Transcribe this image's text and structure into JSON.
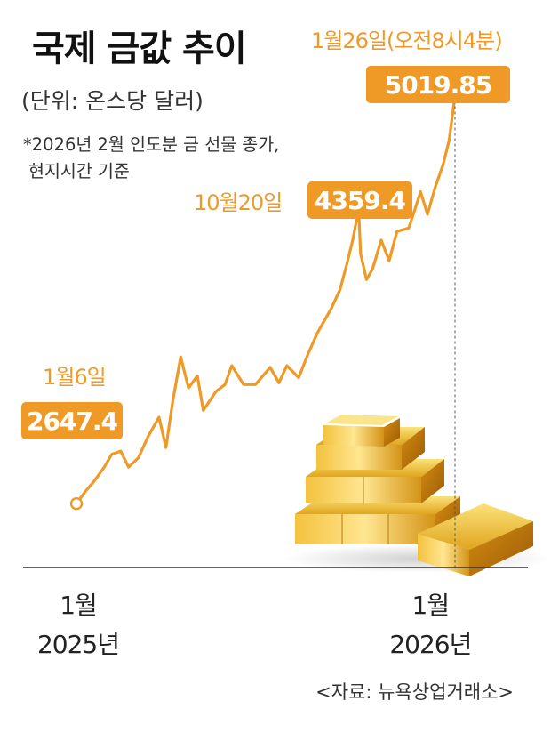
{
  "title": "국제 금값 추이",
  "unit": "(단위: 온스당 달러)",
  "note_lines": [
    "*2026년 2월 인도분 금 선물 종가,",
    "현지시간 기준"
  ],
  "source": "<자료: 뉴욕상업거래소>",
  "colors": {
    "accent": "#ef9a26",
    "line": "#ef9a26",
    "axis": "#333333",
    "text": "#222222"
  },
  "chart_data": {
    "type": "line",
    "title": "국제 금값 추이",
    "ylabel": "(단위: 온스당 달러)",
    "x_ticks": [
      {
        "date": "2025-01-01",
        "month": "1월",
        "year": "2025년"
      },
      {
        "date": "2026-01-01",
        "month": "1월",
        "year": "2026년"
      }
    ],
    "annotations": [
      {
        "date": "2025-01-06",
        "date_label": "1월6일",
        "value_label": "2647.4"
      },
      {
        "date": "2025-10-20",
        "date_label": "10월20일",
        "value_label": "4359.4"
      },
      {
        "date": "2026-01-26",
        "date_label": "1월26일(오전8시4분)",
        "value_label": "5019.85"
      }
    ],
    "series": [
      {
        "points": [
          [
            "2025-01-06",
            2647.4
          ],
          [
            "2025-01-15",
            2718
          ],
          [
            "2025-01-24",
            2778
          ],
          [
            "2025-02-03",
            2857
          ],
          [
            "2025-02-11",
            2935
          ],
          [
            "2025-02-20",
            2953
          ],
          [
            "2025-02-28",
            2860
          ],
          [
            "2025-03-10",
            2914
          ],
          [
            "2025-03-20",
            3040
          ],
          [
            "2025-03-31",
            3150
          ],
          [
            "2025-04-07",
            2973
          ],
          [
            "2025-04-14",
            3245
          ],
          [
            "2025-04-22",
            3500
          ],
          [
            "2025-04-30",
            3320
          ],
          [
            "2025-05-09",
            3390
          ],
          [
            "2025-05-15",
            3190
          ],
          [
            "2025-05-28",
            3300
          ],
          [
            "2025-06-06",
            3340
          ],
          [
            "2025-06-13",
            3450
          ],
          [
            "2025-06-25",
            3340
          ],
          [
            "2025-07-07",
            3340
          ],
          [
            "2025-07-22",
            3440
          ],
          [
            "2025-07-31",
            3350
          ],
          [
            "2025-08-08",
            3450
          ],
          [
            "2025-08-20",
            3380
          ],
          [
            "2025-08-29",
            3510
          ],
          [
            "2025-09-08",
            3640
          ],
          [
            "2025-09-22",
            3780
          ],
          [
            "2025-10-01",
            3890
          ],
          [
            "2025-10-08",
            4040
          ],
          [
            "2025-10-14",
            4180
          ],
          [
            "2025-10-20",
            4359.4
          ],
          [
            "2025-10-22",
            4100
          ],
          [
            "2025-10-28",
            3950
          ],
          [
            "2025-11-03",
            4010
          ],
          [
            "2025-11-12",
            4180
          ],
          [
            "2025-11-20",
            4060
          ],
          [
            "2025-11-28",
            4230
          ],
          [
            "2025-12-10",
            4250
          ],
          [
            "2025-12-22",
            4460
          ],
          [
            "2025-12-29",
            4330
          ],
          [
            "2026-01-06",
            4490
          ],
          [
            "2026-01-14",
            4620
          ],
          [
            "2026-01-20",
            4760
          ],
          [
            "2026-01-26",
            5019.85
          ]
        ]
      }
    ],
    "ylim": [
      2400,
      5100
    ],
    "grid": false,
    "legend": "none"
  }
}
